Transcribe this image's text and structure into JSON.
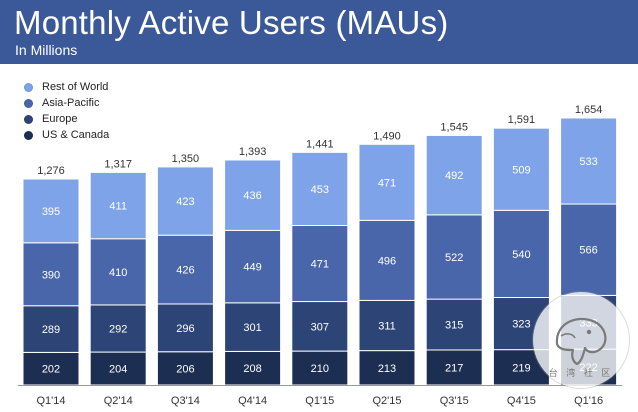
{
  "chart_data": {
    "type": "bar",
    "stacked": true,
    "title": "Monthly Active Users (MAUs)",
    "subtitle": "In Millions",
    "xlabel": "",
    "ylabel": "",
    "ylim": [
      0,
      1654
    ],
    "grid": false,
    "legend_position": "top-left",
    "categories": [
      "Q1'14",
      "Q2'14",
      "Q3'14",
      "Q4'14",
      "Q1'15",
      "Q2'15",
      "Q3'15",
      "Q4'15",
      "Q1'16"
    ],
    "totals": [
      "1,276",
      "1,317",
      "1,350",
      "1,393",
      "1,441",
      "1,490",
      "1,545",
      "1,591",
      "1,654"
    ],
    "series": [
      {
        "name": "US & Canada",
        "color": "#1c2e52",
        "values": [
          202,
          204,
          206,
          208,
          210,
          213,
          217,
          219,
          222
        ]
      },
      {
        "name": "Europe",
        "color": "#2d4477",
        "values": [
          289,
          292,
          296,
          301,
          307,
          311,
          315,
          323,
          333
        ]
      },
      {
        "name": "Asia-Pacific",
        "color": "#4a66aa",
        "values": [
          390,
          410,
          426,
          449,
          471,
          496,
          522,
          540,
          566
        ]
      },
      {
        "name": "Rest of World",
        "color": "#7ea3e8",
        "values": [
          395,
          411,
          423,
          436,
          453,
          471,
          492,
          509,
          533
        ]
      }
    ]
  },
  "legend_order": [
    3,
    2,
    1,
    0
  ],
  "watermark": {
    "text": "台 湾 社 区"
  }
}
